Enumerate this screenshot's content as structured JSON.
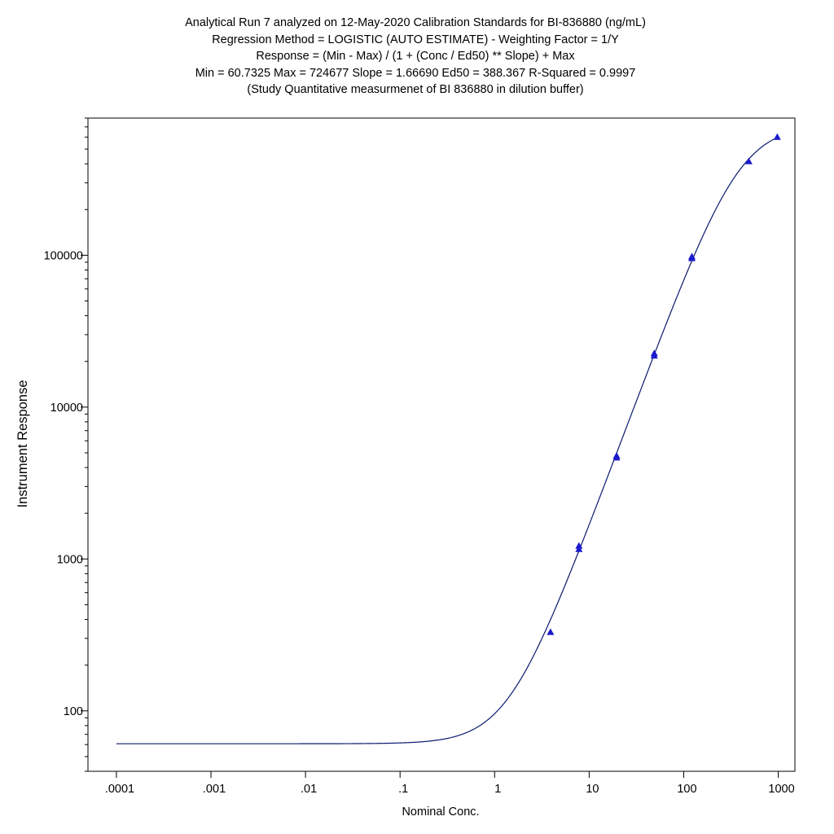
{
  "chart_data": {
    "type": "scatter",
    "title_lines": [
      "Analytical Run 7 analyzed on 12-May-2020 Calibration Standards for BI-836880 (ng/mL)",
      "Regression Method = LOGISTIC (AUTO ESTIMATE) - Weighting Factor = 1/Y",
      "Response = (Min - Max) / (1 + (Conc / Ed50) ** Slope) + Max",
      "Min = 60.7325 Max = 724677 Slope = 1.66690 Ed50 = 388.367 R-Squared = 0.9997",
      "(Study Quantitative measurmenet of BI 836880 in dilution buffer)"
    ],
    "xlabel": "Nominal Conc.",
    "ylabel": "Instrument Response",
    "x_scale": "log",
    "y_scale": "log",
    "xlim": [
      5e-05,
      1500
    ],
    "ylim": [
      40,
      800000
    ],
    "x_ticks": [
      {
        "value": 0.0001,
        "label": ".0001"
      },
      {
        "value": 0.001,
        "label": ".001"
      },
      {
        "value": 0.01,
        "label": ".01"
      },
      {
        "value": 0.1,
        "label": ".1"
      },
      {
        "value": 1,
        "label": "1"
      },
      {
        "value": 10,
        "label": "10"
      },
      {
        "value": 100,
        "label": "100"
      },
      {
        "value": 1000,
        "label": "1000"
      }
    ],
    "y_ticks": [
      {
        "value": 100,
        "label": "100"
      },
      {
        "value": 1000,
        "label": "1000"
      },
      {
        "value": 10000,
        "label": "10000"
      },
      {
        "value": 100000,
        "label": "100000"
      }
    ],
    "grid": false,
    "legend": "none",
    "curve": {
      "model": "4PL",
      "min": 60.7325,
      "max": 724677,
      "slope": 1.6669,
      "ed50": 388.367,
      "color": "#0a1a6e"
    },
    "points": {
      "marker": "triangle",
      "color": "#1a1acc",
      "x": [
        3.9,
        7.8,
        7.8,
        19.5,
        19.5,
        48.8,
        48.8,
        122,
        122,
        488,
        976
      ],
      "y": [
        330,
        1160,
        1220,
        4650,
        4780,
        21800,
        22600,
        95500,
        98000,
        415000,
        600000
      ]
    }
  }
}
